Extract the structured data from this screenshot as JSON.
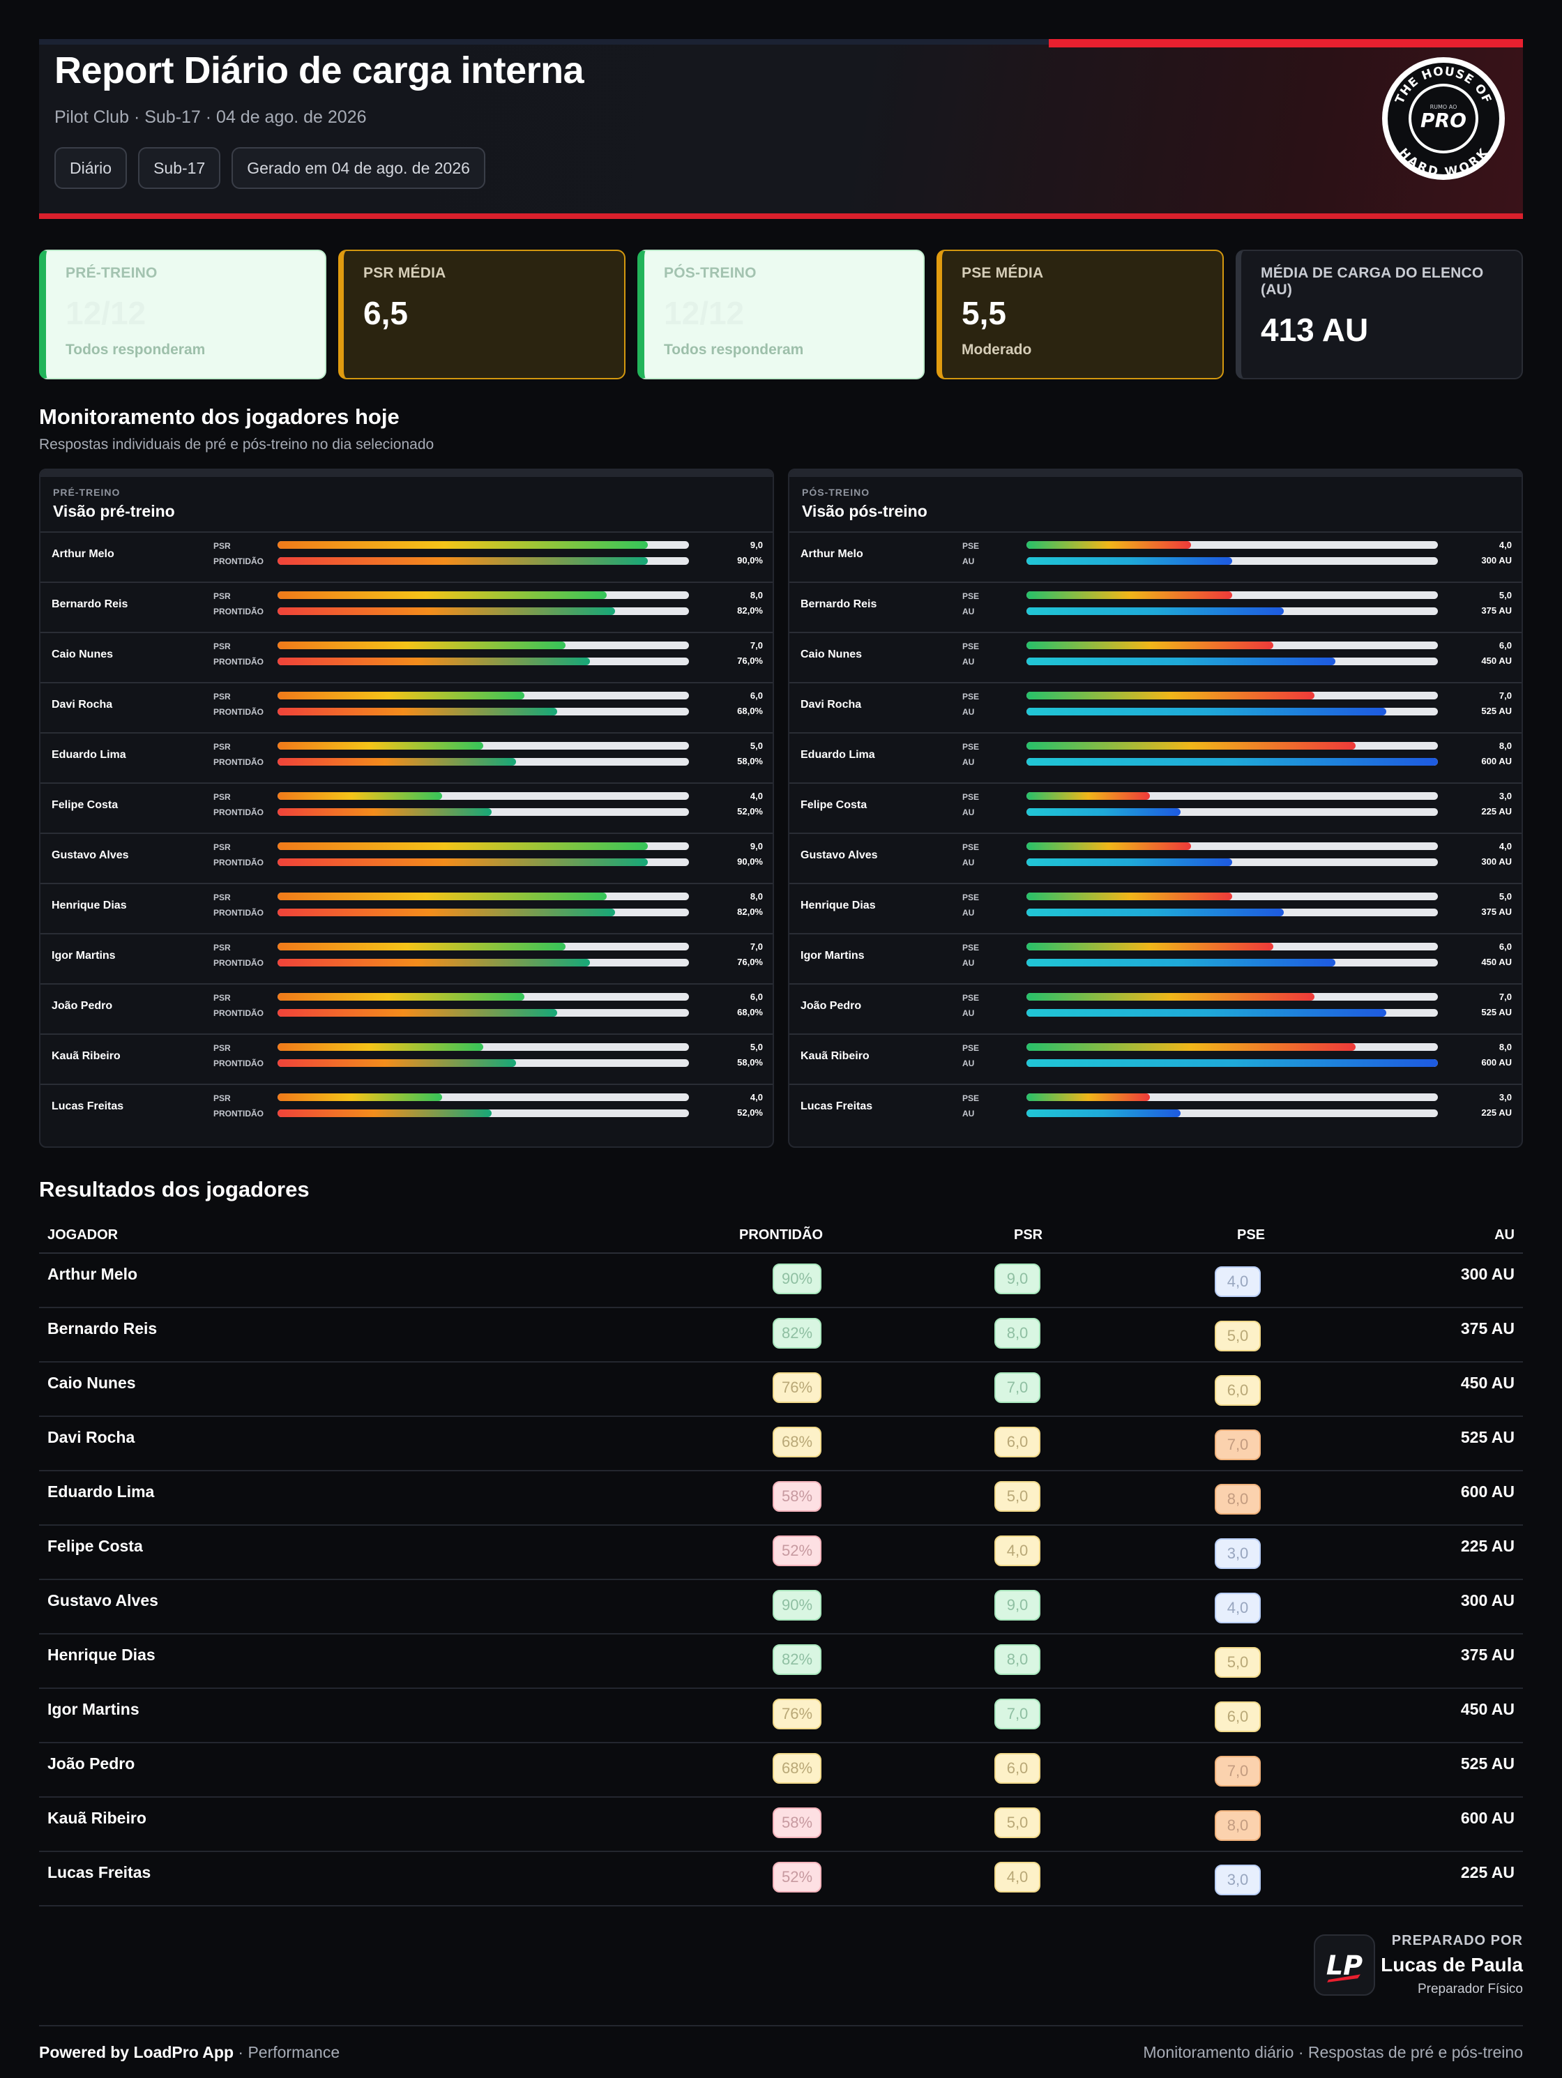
{
  "header": {
    "title": "Report Diário de carga interna",
    "subtitle": "Pilot Club · Sub-17  · 04 de ago. de 2026",
    "chips": [
      "Diário",
      "Sub-17",
      "Gerado em 04 de ago. de 2026"
    ],
    "logo": {
      "top": "THE HOUSE OF",
      "small": "RUMO AO",
      "big": "PRO",
      "bottom": "HARD WORK"
    }
  },
  "kpis": [
    {
      "label": "PRÉ-TREINO",
      "value": "12/12",
      "note": "Todos responderam",
      "style": "green"
    },
    {
      "label": "PSR MÉDIA",
      "value": "6,5",
      "note": "",
      "style": "amber"
    },
    {
      "label": "PÓS-TREINO",
      "value": "12/12",
      "note": "Todos responderam",
      "style": "green"
    },
    {
      "label": "PSE MÉDIA",
      "value": "5,5",
      "note": "Moderado",
      "style": "amber"
    },
    {
      "label": "MÉDIA  DE CARGA DO ELENCO (AU)",
      "value": "413 AU",
      "note": "",
      "style": "dark"
    }
  ],
  "monitor": {
    "title": "Monitoramento  dos jogadores hoje",
    "subtitle": "Respostas individuais de pré e pós-treino no dia selecionado",
    "pre": {
      "tag": "PRÉ-TREINO",
      "title": "Visão pré-treino",
      "label_a": "PSR",
      "label_b": "PRONTIDÃO"
    },
    "post": {
      "tag": "PÓS-TREINO",
      "title": "Visão pós-treino",
      "label_a": "PSE",
      "label_b": "AU"
    }
  },
  "results": {
    "title": "Resultados dos jogadores",
    "columns": [
      "JOGADOR",
      "PRONTIDÃO",
      "PSR",
      "PSE",
      "AU"
    ]
  },
  "players": [
    {
      "name": "Arthur Melo",
      "psr": 9,
      "psr_label": "9,0",
      "pront": 90,
      "pront_label": "90,0%",
      "pront_pct": "90%",
      "pse": 4,
      "pse_label": "4,0",
      "au": 300,
      "au_label": "300 AU",
      "pront_color": "green",
      "psr_color": "green",
      "pse_color": "blue"
    },
    {
      "name": "Bernardo Reis",
      "psr": 8,
      "psr_label": "8,0",
      "pront": 82,
      "pront_label": "82,0%",
      "pront_pct": "82%",
      "pse": 5,
      "pse_label": "5,0",
      "au": 375,
      "au_label": "375 AU",
      "pront_color": "green",
      "psr_color": "green",
      "pse_color": "yellow"
    },
    {
      "name": "Caio Nunes",
      "psr": 7,
      "psr_label": "7,0",
      "pront": 76,
      "pront_label": "76,0%",
      "pront_pct": "76%",
      "pse": 6,
      "pse_label": "6,0",
      "au": 450,
      "au_label": "450 AU",
      "pront_color": "yellow",
      "psr_color": "green",
      "pse_color": "yellow"
    },
    {
      "name": "Davi Rocha",
      "psr": 6,
      "psr_label": "6,0",
      "pront": 68,
      "pront_label": "68,0%",
      "pront_pct": "68%",
      "pse": 7,
      "pse_label": "7,0",
      "au": 525,
      "au_label": "525 AU",
      "pront_color": "yellow",
      "psr_color": "yellow",
      "pse_color": "orange"
    },
    {
      "name": "Eduardo Lima",
      "psr": 5,
      "psr_label": "5,0",
      "pront": 58,
      "pront_label": "58,0%",
      "pront_pct": "58%",
      "pse": 8,
      "pse_label": "8,0",
      "au": 600,
      "au_label": "600 AU",
      "pront_color": "red",
      "psr_color": "yellow",
      "pse_color": "orange"
    },
    {
      "name": "Felipe Costa",
      "psr": 4,
      "psr_label": "4,0",
      "pront": 52,
      "pront_label": "52,0%",
      "pront_pct": "52%",
      "pse": 3,
      "pse_label": "3,0",
      "au": 225,
      "au_label": "225 AU",
      "pront_color": "red",
      "psr_color": "yellow",
      "pse_color": "blue"
    },
    {
      "name": "Gustavo Alves",
      "psr": 9,
      "psr_label": "9,0",
      "pront": 90,
      "pront_label": "90,0%",
      "pront_pct": "90%",
      "pse": 4,
      "pse_label": "4,0",
      "au": 300,
      "au_label": "300 AU",
      "pront_color": "green",
      "psr_color": "green",
      "pse_color": "blue"
    },
    {
      "name": "Henrique Dias",
      "psr": 8,
      "psr_label": "8,0",
      "pront": 82,
      "pront_label": "82,0%",
      "pront_pct": "82%",
      "pse": 5,
      "pse_label": "5,0",
      "au": 375,
      "au_label": "375 AU",
      "pront_color": "green",
      "psr_color": "green",
      "pse_color": "yellow"
    },
    {
      "name": "Igor Martins",
      "psr": 7,
      "psr_label": "7,0",
      "pront": 76,
      "pront_label": "76,0%",
      "pront_pct": "76%",
      "pse": 6,
      "pse_label": "6,0",
      "au": 450,
      "au_label": "450 AU",
      "pront_color": "yellow",
      "psr_color": "green",
      "pse_color": "yellow"
    },
    {
      "name": "João Pedro",
      "psr": 6,
      "psr_label": "6,0",
      "pront": 68,
      "pront_label": "68,0%",
      "pront_pct": "68%",
      "pse": 7,
      "pse_label": "7,0",
      "au": 525,
      "au_label": "525 AU",
      "pront_color": "yellow",
      "psr_color": "yellow",
      "pse_color": "orange"
    },
    {
      "name": "Kauã Ribeiro",
      "psr": 5,
      "psr_label": "5,0",
      "pront": 58,
      "pront_label": "58,0%",
      "pront_pct": "58%",
      "pse": 8,
      "pse_label": "8,0",
      "au": 600,
      "au_label": "600 AU",
      "pront_color": "red",
      "psr_color": "yellow",
      "pse_color": "orange"
    },
    {
      "name": "Lucas Freitas",
      "psr": 4,
      "psr_label": "4,0",
      "pront": 52,
      "pront_label": "52,0%",
      "pront_pct": "52%",
      "pse": 3,
      "pse_label": "3,0",
      "au": 225,
      "au_label": "225 AU",
      "pront_color": "red",
      "psr_color": "yellow",
      "pse_color": "blue"
    }
  ],
  "scales": {
    "psr_max": 10,
    "pse_max": 10,
    "pront_max": 100,
    "au_max": 600
  },
  "prepared": {
    "label": "PREPARADO  POR",
    "name": "Lucas de Paula",
    "role": "Preparador Físico",
    "logo_text": "LP"
  },
  "footer": {
    "brand": "Powered by LoadPro App",
    "rest": " · Performance",
    "right": "Monitoramento diário · Respostas de pré e pós-treino"
  },
  "colors": {
    "accent_red": "#e8202f",
    "green": "#22b45a",
    "amber": "#e09b10"
  }
}
